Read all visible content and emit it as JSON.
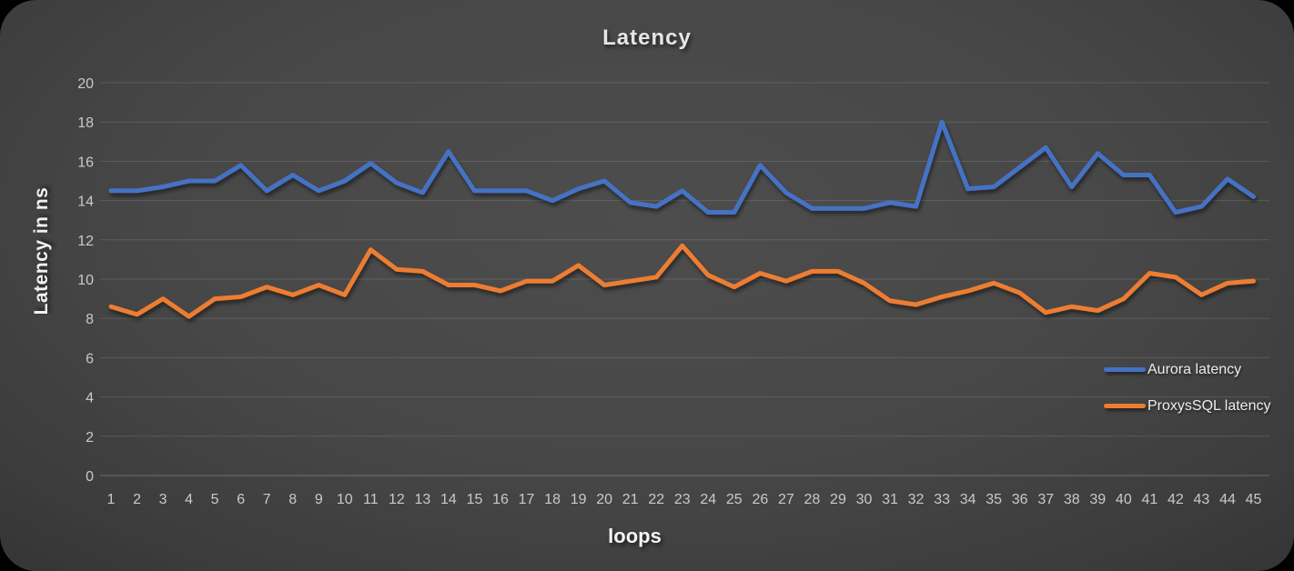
{
  "chart_data": {
    "type": "line",
    "title": "Latency",
    "xlabel": "loops",
    "ylabel": "Latency in ns",
    "ylim": [
      0,
      20
    ],
    "y_ticks": [
      20,
      18,
      16,
      14,
      12,
      10,
      8,
      6,
      4,
      2,
      0
    ],
    "grid": "horizontal",
    "legend_position": "middle-right",
    "categories": [
      "1",
      "2",
      "3",
      "4",
      "5",
      "6",
      "7",
      "8",
      "9",
      "10",
      "11",
      "12",
      "13",
      "14",
      "15",
      "16",
      "17",
      "18",
      "19",
      "20",
      "21",
      "22",
      "23",
      "24",
      "25",
      "26",
      "27",
      "28",
      "29",
      "30",
      "31",
      "32",
      "33",
      "34",
      "35",
      "36",
      "37",
      "38",
      "39",
      "40",
      "41",
      "42",
      "43",
      "44",
      "45"
    ],
    "series": [
      {
        "name": "Aurora latency",
        "color": "#4472C4",
        "values": [
          14.5,
          14.5,
          14.7,
          15.0,
          15.0,
          15.8,
          14.5,
          15.3,
          14.5,
          15.0,
          15.9,
          14.9,
          14.4,
          16.5,
          14.5,
          14.5,
          14.5,
          14.0,
          14.6,
          15.0,
          13.9,
          13.7,
          14.5,
          13.4,
          13.4,
          15.8,
          14.4,
          13.6,
          13.6,
          13.6,
          13.9,
          13.7,
          18.0,
          14.6,
          14.7,
          15.7,
          16.7,
          14.7,
          16.4,
          15.3,
          15.3,
          13.4,
          13.7,
          15.1,
          14.2
        ]
      },
      {
        "name": "ProxysSQL latency",
        "color": "#ED7D31",
        "values": [
          8.6,
          8.2,
          9.0,
          8.1,
          9.0,
          9.1,
          9.6,
          9.2,
          9.7,
          9.2,
          11.5,
          10.5,
          10.4,
          9.7,
          9.7,
          9.4,
          9.9,
          9.9,
          10.7,
          9.7,
          9.9,
          10.1,
          11.7,
          10.2,
          9.6,
          10.3,
          9.9,
          10.4,
          10.4,
          9.8,
          8.9,
          8.7,
          9.1,
          9.4,
          9.8,
          9.3,
          8.3,
          8.6,
          8.4,
          9.0,
          10.3,
          10.1,
          9.2,
          9.8,
          9.9
        ]
      }
    ]
  },
  "colors": {
    "surface_outer": "#000000",
    "gridline": "rgba(255,255,255,0.13)",
    "zero_axis_line": "rgba(255,255,255,0.25)",
    "tick_label": "#c9c9c9",
    "title_text": "#e6e6e6",
    "aurora_line": "#4472C4",
    "proxysql_line": "#ED7D31"
  }
}
